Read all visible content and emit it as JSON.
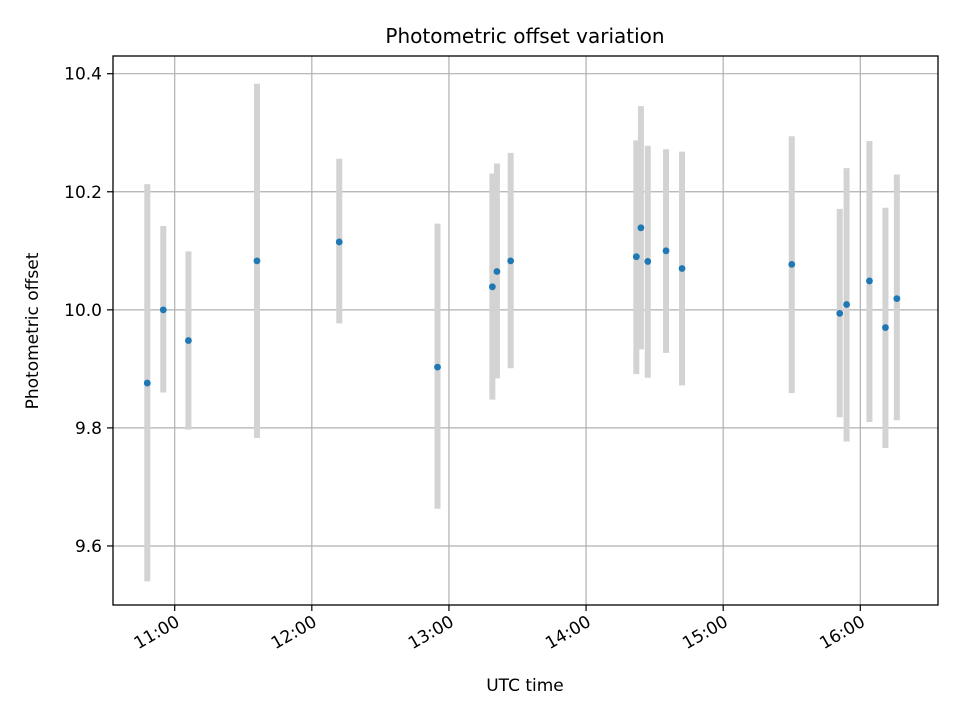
{
  "chart_data": {
    "type": "scatter",
    "title": "Photometric offset variation",
    "xlabel": "UTC time",
    "ylabel": "Photometric offset",
    "x_ticks": [
      "11:00",
      "12:00",
      "13:00",
      "14:00",
      "15:00",
      "16:00"
    ],
    "y_ticks": [
      "9.6",
      "9.8",
      "10.0",
      "10.2",
      "10.4"
    ],
    "xlim": [
      "10:33",
      "16:34"
    ],
    "ylim": [
      9.5,
      10.43
    ],
    "grid": true,
    "colors": {
      "point": "#1f77b4",
      "errorbar": "#d3d3d3",
      "grid": "#b0b0b0"
    },
    "series": [
      {
        "x": [
          "10:48",
          "10:55",
          "11:06",
          "11:36",
          "12:12",
          "12:55",
          "13:19",
          "13:21",
          "13:27",
          "14:22",
          "14:24",
          "14:27",
          "14:35",
          "14:42",
          "15:30",
          "15:51",
          "15:54",
          "16:04",
          "16:11",
          "16:16"
        ],
        "y": [
          9.876,
          10.0,
          9.948,
          10.083,
          10.115,
          9.903,
          10.039,
          10.065,
          10.083,
          10.09,
          10.139,
          10.082,
          10.1,
          10.07,
          10.077,
          9.994,
          10.009,
          10.049,
          9.97,
          10.019
        ],
        "yerr_low": [
          9.54,
          9.86,
          9.797,
          9.783,
          9.977,
          9.663,
          9.848,
          9.884,
          9.901,
          9.891,
          9.933,
          9.885,
          9.927,
          9.872,
          9.859,
          9.818,
          9.777,
          9.81,
          9.766,
          9.813
        ],
        "yerr_high": [
          10.213,
          10.142,
          10.099,
          10.383,
          10.256,
          10.146,
          10.231,
          10.248,
          10.266,
          10.287,
          10.345,
          10.278,
          10.272,
          10.268,
          10.294,
          10.171,
          10.24,
          10.286,
          10.173,
          10.229
        ]
      }
    ]
  }
}
